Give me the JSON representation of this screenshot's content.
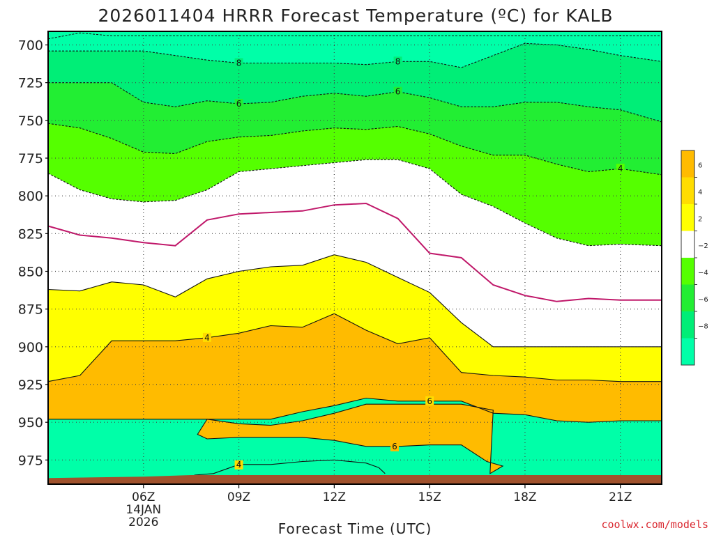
{
  "chart_data": {
    "type": "heatmap",
    "title": "2026011404 HRRR Forecast Temperature (ºC) for KALB",
    "xlabel": "Forecast Time (UTC)",
    "ylabel": "",
    "credit": "coolwx.com/models",
    "x_range_hours": [
      3,
      22.3
    ],
    "y_range_hpa": [
      691,
      991
    ],
    "y_ticks": [
      {
        "value": 700,
        "label": "700"
      },
      {
        "value": 725,
        "label": "725"
      },
      {
        "value": 750,
        "label": "750"
      },
      {
        "value": 775,
        "label": "775"
      },
      {
        "value": 800,
        "label": "800"
      },
      {
        "value": 825,
        "label": "825"
      },
      {
        "value": 850,
        "label": "850"
      },
      {
        "value": 875,
        "label": "875"
      },
      {
        "value": 900,
        "label": "900"
      },
      {
        "value": 925,
        "label": "925"
      },
      {
        "value": 950,
        "label": "950"
      },
      {
        "value": 975,
        "label": "975"
      }
    ],
    "x_ticks": [
      {
        "value": 6,
        "label": "06Z"
      },
      {
        "value": 9,
        "label": "09Z"
      },
      {
        "value": 12,
        "label": "12Z"
      },
      {
        "value": 15,
        "label": "15Z"
      },
      {
        "value": 18,
        "label": "18Z"
      },
      {
        "value": 21,
        "label": "21Z"
      }
    ],
    "date_label": {
      "day": "14JAN",
      "year": "2026",
      "hour": 6
    },
    "surface_hpa": [
      987,
      986,
      985
    ],
    "isotherm_hours": [
      3,
      4,
      5,
      6,
      7,
      8,
      9,
      10,
      11,
      12,
      13,
      14,
      15,
      16,
      17,
      18,
      19,
      20,
      21,
      22.3
    ],
    "isotherms": [
      {
        "value": -9,
        "pressures": [
          696,
          692,
          694,
          694,
          694,
          694,
          694,
          694,
          694,
          694,
          694,
          694,
          694,
          694,
          694,
          694,
          694,
          694,
          694,
          694
        ]
      },
      {
        "value": -8,
        "pressures": [
          704,
          704,
          704,
          704,
          707,
          710,
          712,
          712,
          712,
          712,
          713,
          711,
          711,
          715,
          707,
          699,
          700,
          703,
          707,
          711
        ]
      },
      {
        "value": -6,
        "pressures": [
          725,
          725,
          725,
          738,
          741,
          737,
          739,
          738,
          734,
          732,
          734,
          731,
          735,
          741,
          741,
          738,
          738,
          741,
          743,
          751
        ]
      },
      {
        "value": -4,
        "pressures": [
          752,
          755,
          762,
          771,
          772,
          764,
          761,
          760,
          757,
          755,
          756,
          754,
          759,
          767,
          773,
          773,
          779,
          784,
          782,
          786
        ]
      },
      {
        "value": -2,
        "pressures": [
          785,
          796,
          802,
          804,
          803,
          796,
          784,
          782,
          780,
          778,
          776,
          776,
          782,
          799,
          807,
          818,
          828,
          833,
          832,
          833
        ]
      },
      {
        "value": 0,
        "pressures": [
          820,
          826,
          828,
          831,
          833,
          816,
          812,
          811,
          810,
          806,
          805,
          815,
          838,
          841,
          859,
          866,
          870,
          868,
          869,
          869
        ]
      },
      {
        "value": 2,
        "pressures": [
          862,
          863,
          857,
          859,
          867,
          855,
          850,
          847,
          846,
          839,
          844,
          854,
          864,
          884,
          900,
          900,
          900,
          900,
          900,
          900
        ]
      },
      {
        "value": 4,
        "pressures": [
          923,
          919,
          896,
          896,
          896,
          894,
          891,
          886,
          887,
          878,
          889,
          898,
          894,
          917,
          919,
          920,
          922,
          922,
          923,
          923
        ]
      },
      {
        "value": 6,
        "pressures": [
          948,
          948,
          948,
          948,
          948,
          948,
          948,
          948,
          943,
          939,
          934,
          936,
          936,
          936,
          944,
          945,
          949,
          950,
          949,
          949
        ]
      }
    ],
    "contour_labels": [
      {
        "value": -8,
        "label": "8",
        "hour": 9.0
      },
      {
        "value": -8,
        "label": "8",
        "hour": 14.0
      },
      {
        "value": -6,
        "label": "6",
        "hour": 9.0
      },
      {
        "value": -6,
        "label": "6",
        "hour": 14.0
      },
      {
        "value": -4,
        "label": "4",
        "hour": 21.0
      },
      {
        "value": 4,
        "label": "4",
        "hour": 8.0
      },
      {
        "value": 6,
        "label": "6",
        "hour": 15.0
      }
    ],
    "warm_lobes": [
      {
        "value": 6,
        "label": "6",
        "label_hour": 13.9,
        "top": [
          [
            8.0,
            948
          ],
          [
            9.0,
            951
          ],
          [
            10.0,
            952
          ],
          [
            11.0,
            949
          ],
          [
            12.0,
            944
          ],
          [
            13.0,
            938
          ],
          [
            14.0,
            938
          ],
          [
            15.0,
            938
          ],
          [
            16.0,
            938
          ],
          [
            17.0,
            942
          ]
        ],
        "bottom": [
          [
            7.7,
            958
          ],
          [
            8.0,
            961
          ],
          [
            9.0,
            960
          ],
          [
            10.0,
            960
          ],
          [
            11.0,
            960
          ],
          [
            12.0,
            962
          ],
          [
            13.0,
            966
          ],
          [
            14.0,
            966
          ],
          [
            15.0,
            965
          ],
          [
            16.0,
            965
          ],
          [
            16.8,
            976
          ],
          [
            17.3,
            979
          ],
          [
            16.9,
            984
          ]
        ]
      },
      {
        "value": 4,
        "label": "4",
        "label_hour": 9.0,
        "top": [
          [
            7.6,
            985
          ],
          [
            8.2,
            984
          ],
          [
            9.0,
            978
          ],
          [
            10.0,
            978
          ],
          [
            11.0,
            976
          ],
          [
            12.0,
            975
          ],
          [
            13.0,
            977
          ],
          [
            13.4,
            980
          ],
          [
            13.6,
            984
          ]
        ],
        "bottom": []
      }
    ],
    "legend": {
      "type": "colorbar",
      "bins": [
        {
          "from": 6,
          "to": 8,
          "color": "#ffbb00"
        },
        {
          "from": 4,
          "to": 6,
          "color": "#ffdd00"
        },
        {
          "from": 2,
          "to": 4,
          "color": "#ffff00"
        },
        {
          "from": -2,
          "to": 2,
          "color": "#ffffff"
        },
        {
          "from": -4,
          "to": -2,
          "color": "#55ff00"
        },
        {
          "from": -6,
          "to": -4,
          "color": "#22ee33"
        },
        {
          "from": -8,
          "to": -6,
          "color": "#00ee77"
        },
        {
          "from": -10,
          "to": -8,
          "color": "#00ffa8"
        }
      ],
      "labels": [
        "6",
        "4",
        "2",
        "−2",
        "−4",
        "−6",
        "−8"
      ]
    },
    "colors": {
      "warm6": "#ffbb00",
      "warm4": "#ffdd00",
      "warm2": "#ffff00",
      "neutral": "#ffffff",
      "cold2": "#55ff00",
      "cold4": "#22ee33",
      "cold6": "#00ee77",
      "cold8": "#00ffa8",
      "freezing_line": "#c0186a",
      "ground": "#a0522d",
      "credit": "#d9262e"
    }
  }
}
